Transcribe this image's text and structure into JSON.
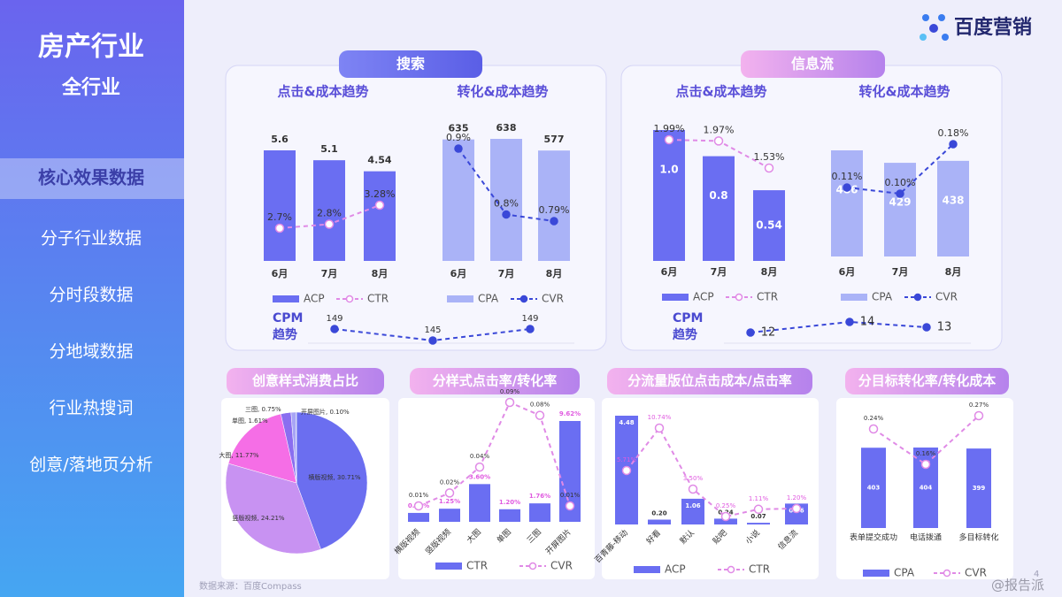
{
  "sidebar": {
    "title": "房产行业",
    "subtitle": "全行业",
    "menu": [
      "核心效果数据",
      "分子行业数据",
      "分时段数据",
      "分地域数据",
      "行业热搜词",
      "创意/落地页分析"
    ],
    "active": 0
  },
  "logo": "百度营销",
  "sections": [
    "搜索",
    "信息流"
  ],
  "footer": {
    "source": "数据来源：百度Compass",
    "page": 4,
    "watermark": "@报告派"
  },
  "chart_data": [
    {
      "type": "combo",
      "title": "点击&成本趋势",
      "categories": [
        "6月",
        "7月",
        "8月"
      ],
      "bar_label_position": "above",
      "series": [
        {
          "name": "ACP",
          "color": "#6a6ef2",
          "values": [
            5.6,
            5.1,
            4.54
          ]
        },
        {
          "name": "CTR",
          "color": "#e08ae6",
          "marker": "open",
          "values": [
            2.7,
            2.8,
            3.28
          ],
          "value_labels": [
            "2.7%",
            "2.8%",
            "3.28%"
          ]
        }
      ]
    },
    {
      "type": "combo",
      "title": "转化&成本趋势",
      "categories": [
        "6月",
        "7月",
        "8月"
      ],
      "bar_label_position": "above",
      "series": [
        {
          "name": "CPA",
          "color": "#aab3f7",
          "values": [
            635,
            638,
            577
          ]
        },
        {
          "name": "CVR",
          "color": "#3a48d8",
          "marker": "filled",
          "values": [
            0.9,
            0.8,
            0.79
          ],
          "value_labels": [
            "0.9%",
            "0.8%",
            "0.79%"
          ]
        }
      ]
    },
    {
      "type": "line",
      "title": "CPM 趋势",
      "color": "#3a48d8",
      "values": [
        149,
        145,
        149
      ]
    },
    {
      "type": "combo",
      "title": "点击&成本趋势",
      "categories": [
        "6月",
        "7月",
        "8月"
      ],
      "bar_label_position": "inside",
      "series": [
        {
          "name": "ACP",
          "color": "#6a6ef2",
          "values": [
            1.0,
            0.8,
            0.54
          ],
          "value_labels": [
            "1.0",
            "0.8",
            "0.54"
          ]
        },
        {
          "name": "CTR",
          "color": "#e08ae6",
          "marker": "open",
          "values": [
            1.99,
            1.97,
            1.53
          ],
          "value_labels": [
            "1.99%",
            "1.97%",
            "1.53%"
          ]
        }
      ]
    },
    {
      "type": "combo",
      "title": "转化&成本趋势",
      "categories": [
        "6月",
        "7月",
        "8月"
      ],
      "bar_label_position": "inside",
      "series": [
        {
          "name": "CPA",
          "color": "#aab3f7",
          "values": [
            486,
            429,
            438
          ]
        },
        {
          "name": "CVR",
          "color": "#3a48d8",
          "marker": "filled",
          "values": [
            0.11,
            0.1,
            0.18
          ],
          "value_labels": [
            "0.11%",
            "0.10%",
            "0.18%"
          ]
        }
      ]
    },
    {
      "type": "line",
      "title": "CPM 趋势",
      "color": "#3a48d8",
      "values": [
        12,
        14,
        13
      ]
    },
    {
      "type": "pie",
      "title": "创意样式消费占比",
      "categories": [
        "横版视频",
        "竖版视频",
        "大图",
        "单图",
        "三图",
        "开屏图片"
      ],
      "values": [
        30.71,
        24.21,
        11.77,
        1.61,
        0.75,
        0.1
      ],
      "value_labels": [
        "横版视频, 30.71%",
        "竖版视频, 24.21%",
        "大图, 11.77%",
        "单图, 1.61%",
        "三图, 0.75%",
        "开屏图片, 0.10%"
      ],
      "colors": [
        "#6b6ef0",
        "#c892f2",
        "#f56ee6",
        "#8a6ef0",
        "#a7a4f6",
        "#4b5bd8"
      ]
    },
    {
      "type": "combo",
      "title": "分样式点击率/转化率",
      "categories": [
        "横版视频",
        "竖版视频",
        "大图",
        "单图",
        "三图",
        "开屏图片"
      ],
      "bar_label_position": "top",
      "series": [
        {
          "name": "CTR",
          "color": "#6a6ef2",
          "values": [
            0.85,
            1.25,
            3.6,
            1.2,
            1.76,
            9.62
          ],
          "value_labels": [
            "0.85%",
            "1.25%",
            "3.60%",
            "1.20%",
            "1.76%",
            "9.62%"
          ]
        },
        {
          "name": "CVR",
          "color": "#e08ae6",
          "marker": "open",
          "values": [
            0.01,
            0.02,
            0.04,
            0.09,
            0.08,
            0.01
          ],
          "value_labels": [
            "0.01%",
            "0.02%",
            "0.04%",
            "0.09%",
            "0.08%",
            "0.01%"
          ]
        }
      ]
    },
    {
      "type": "combo",
      "title": "分流量版位点击成本/点击率",
      "categories": [
        "百青藤-移动",
        "好看",
        "默认",
        "贴吧",
        "小说",
        "信息流"
      ],
      "bar_label_position": "top",
      "series": [
        {
          "name": "ACP",
          "color": "#6a6ef2",
          "values": [
            4.48,
            0.2,
            1.06,
            0.24,
            0.07,
            0.86
          ],
          "value_labels": [
            "4.48",
            "0.20",
            "1.06",
            "0.24",
            "0.07",
            "0.86"
          ]
        },
        {
          "name": "CTR",
          "color": "#e08ae6",
          "marker": "open",
          "values": [
            5.71,
            10.74,
            3.5,
            0.25,
            1.11,
            1.2
          ],
          "value_labels": [
            "5.71%",
            "10.74%",
            "3.50%",
            "0.25%",
            "1.11%",
            "1.20%"
          ]
        }
      ]
    },
    {
      "type": "combo",
      "title": "分目标转化率/转化成本",
      "categories": [
        "表单提交成功",
        "电话拨通",
        "多目标转化"
      ],
      "bar_label_position": "inside",
      "series": [
        {
          "name": "CPA",
          "color": "#6a6ef2",
          "values": [
            403,
            404,
            399
          ]
        },
        {
          "name": "CVR",
          "color": "#e08ae6",
          "marker": "open",
          "values": [
            0.24,
            0.16,
            0.27
          ],
          "value_labels": [
            "0.24%",
            "0.16%",
            "0.27%"
          ]
        }
      ]
    }
  ]
}
